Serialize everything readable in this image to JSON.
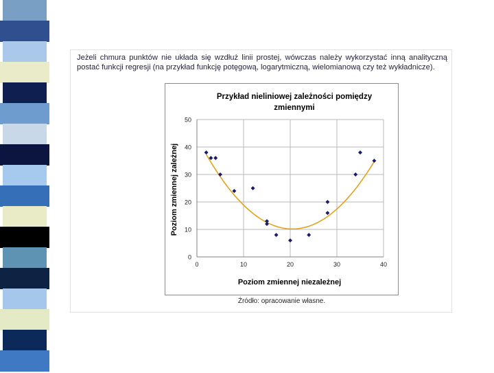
{
  "intro_text": "Jeżeli chmura punktów nie układa się wzdłuż linii prostej, wówczas należy wykorzystać inną analityczną postać funkcji regresji (na przykład funkcję potęgową, logarytmiczną, wielomianową czy też wykładnicze).",
  "source_note": "Źródło: opracowanie własne.",
  "colors": {
    "points": "#1a1a6e",
    "trend": "#e3a21a",
    "grid": "#b8b8b8",
    "axis": "#808080",
    "strip": [
      "#5b8db8",
      "#c8d8e8",
      "#1a1f66",
      "#7fb0e0",
      "#e8ecd0",
      "#0d1a40",
      "#3a6ea5",
      "#000000"
    ]
  },
  "decor_strip": [
    {
      "color": "#7a9fc5"
    },
    {
      "color": "#2f4f8f"
    },
    {
      "color": "#a9c8ea"
    },
    {
      "color": "#e9ebc9"
    },
    {
      "color": "#0f1f4f"
    },
    {
      "color": "#6f9ccf"
    },
    {
      "color": "#c9d8e9"
    },
    {
      "color": "#0c1540"
    },
    {
      "color": "#a6c9ee"
    },
    {
      "color": "#356fb7"
    },
    {
      "color": "#e8ebc6"
    },
    {
      "color": "#000000"
    },
    {
      "color": "#5e93b3"
    },
    {
      "color": "#0d2344"
    },
    {
      "color": "#a5c7ec"
    },
    {
      "color": "#e4e9c6"
    },
    {
      "color": "#0b2a5a"
    },
    {
      "color": "#3f79c4"
    }
  ],
  "chart_data": {
    "type": "scatter",
    "title": "Przykład nieliniowej zależności pomiędzy zmiennymi",
    "title_lines": [
      "Przykład nieliniowej zależności pomiędzy",
      "zmiennymi"
    ],
    "xlabel": "Poziom zmiennej niezależnej",
    "ylabel": "Poziom zmiennej zależnej",
    "xlim": [
      0,
      40
    ],
    "ylim": [
      0,
      50
    ],
    "xticks": [
      0,
      10,
      20,
      30,
      40
    ],
    "yticks": [
      0,
      10,
      20,
      30,
      40,
      50
    ],
    "grid": true,
    "legend": "none",
    "series": [
      {
        "type": "scatter",
        "x": [
          2,
          3,
          4,
          5,
          8,
          12,
          15,
          15,
          17,
          20,
          24,
          28,
          28,
          34,
          35,
          38
        ],
        "y": [
          38,
          36,
          36,
          30,
          24,
          25,
          13,
          12,
          8,
          6,
          8,
          20,
          16,
          30,
          38,
          35
        ]
      },
      {
        "type": "trendline",
        "degree": 2,
        "x_range": [
          2,
          38
        ],
        "coefficients": [
          0.0797,
          -3.26,
          43.5
        ]
      }
    ]
  }
}
